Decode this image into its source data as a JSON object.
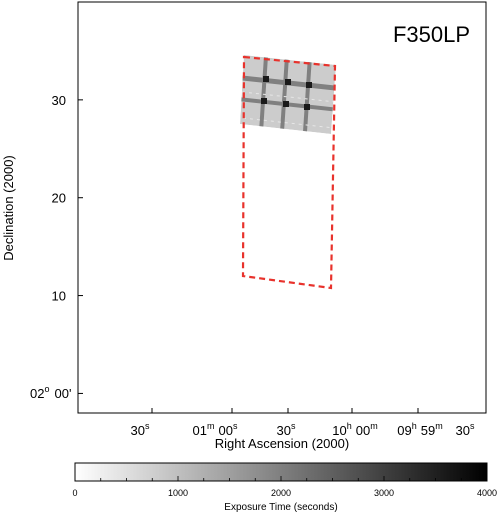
{
  "chart_data": {
    "type": "heatmap",
    "title": "F350LP",
    "xlabel": "Right Ascension (2000)",
    "ylabel": "Declination (2000)",
    "colorbar_label": "Exposure Time (seconds)",
    "colorbar_range": [
      0,
      4000
    ],
    "colorbar_ticks": [
      "0",
      "1000",
      "2000",
      "3000",
      "4000"
    ],
    "colormap": [
      "#ffffff",
      "#000000"
    ],
    "x_ticks": [
      {
        "text": "30",
        "sup": "s"
      },
      {
        "text": "01",
        "sup": "m",
        "text2": "00",
        "sup2": "s"
      },
      {
        "text": "30",
        "sup": "s"
      },
      {
        "text": "10",
        "sup": "h",
        "text2": "00",
        "sup2": "m"
      },
      {
        "text": "09",
        "sup": "h",
        "text2": "59",
        "sup2": "m"
      },
      {
        "text": "30",
        "sup": "s"
      }
    ],
    "y_ticks": [
      {
        "value": 10,
        "text": "10"
      },
      {
        "value": 20,
        "text": "20"
      },
      {
        "value": 30,
        "text": "30"
      }
    ],
    "y_origin_label": {
      "text": "02",
      "sup": "o",
      "text2": "00'"
    },
    "y_range_arcmin": [
      -2,
      40
    ],
    "footprint_color": "#e8322c",
    "base_exposure_seconds": 800,
    "overlap_exposure_seconds": 2000,
    "peak_exposure_seconds": 3600
  }
}
